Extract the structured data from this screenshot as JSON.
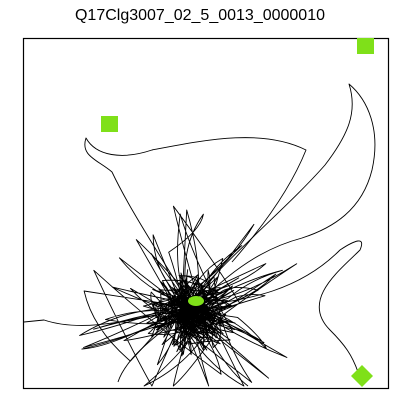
{
  "title": "Q17Clg3007_02_5_0013_0000010"
}
